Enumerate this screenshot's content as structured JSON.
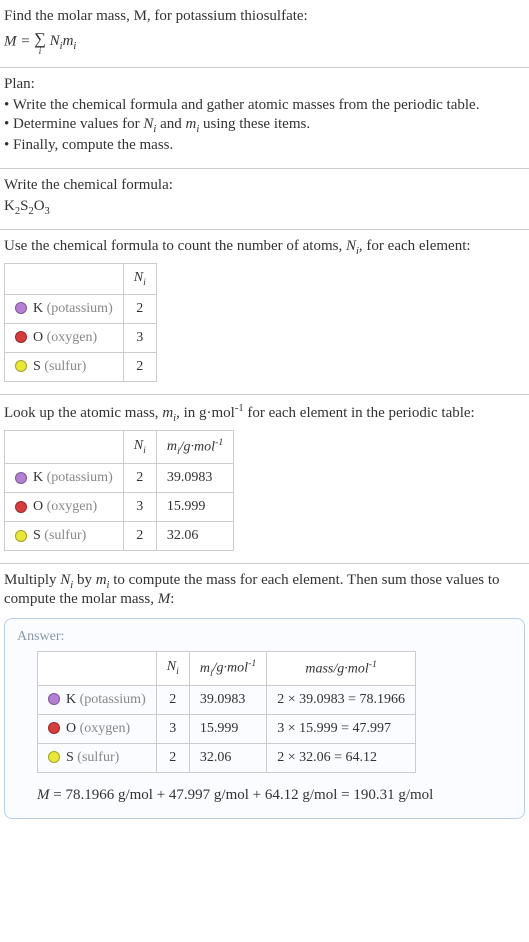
{
  "intro": {
    "line1": "Find the molar mass, M, for potassium thiosulfate:",
    "formula_lhs": "M = ",
    "sum_index": "i",
    "formula_rhs": " N_i m_i"
  },
  "plan": {
    "title": "Plan:",
    "items": [
      "• Write the chemical formula and gather atomic masses from the periodic table.",
      "• Determine values for N_i and m_i using these items.",
      "• Finally, compute the mass."
    ]
  },
  "writeFormula": {
    "title": "Write the chemical formula:",
    "formula_parts": [
      "K",
      "2",
      "S",
      "2",
      "O",
      "3"
    ]
  },
  "countAtoms": {
    "title_a": "Use the chemical formula to count the number of atoms, ",
    "title_b": "N_i",
    "title_c": ", for each element:"
  },
  "lookup": {
    "title_a": "Look up the atomic mass, ",
    "title_b": "m_i",
    "title_c": ", in g·mol",
    "title_d": " for each element in the periodic table:"
  },
  "multiply": {
    "line1": "Multiply N_i by m_i to compute the mass for each element. Then sum those values",
    "line2": "to compute the molar mass, M:"
  },
  "answer": {
    "label": "Answer:",
    "final": "M = 78.1966 g/mol + 47.997 g/mol + 64.12 g/mol = 190.31 g/mol"
  },
  "headers": {
    "Ni": "N_i",
    "mi": "m_i/g·mol^-1",
    "mass": "mass/g·mol^-1"
  },
  "elements": [
    {
      "sym": "K",
      "name": "(potassium)",
      "color": "#b67fd6",
      "N": "2",
      "m": "39.0983",
      "mass": "2 × 39.0983 = 78.1966"
    },
    {
      "sym": "O",
      "name": "(oxygen)",
      "color": "#d93b3b",
      "N": "3",
      "m": "15.999",
      "mass": "3 × 15.999 = 47.997"
    },
    {
      "sym": "S",
      "name": "(sulfur)",
      "color": "#e9e935",
      "N": "2",
      "m": "32.06",
      "mass": "2 × 32.06 = 64.12"
    }
  ]
}
